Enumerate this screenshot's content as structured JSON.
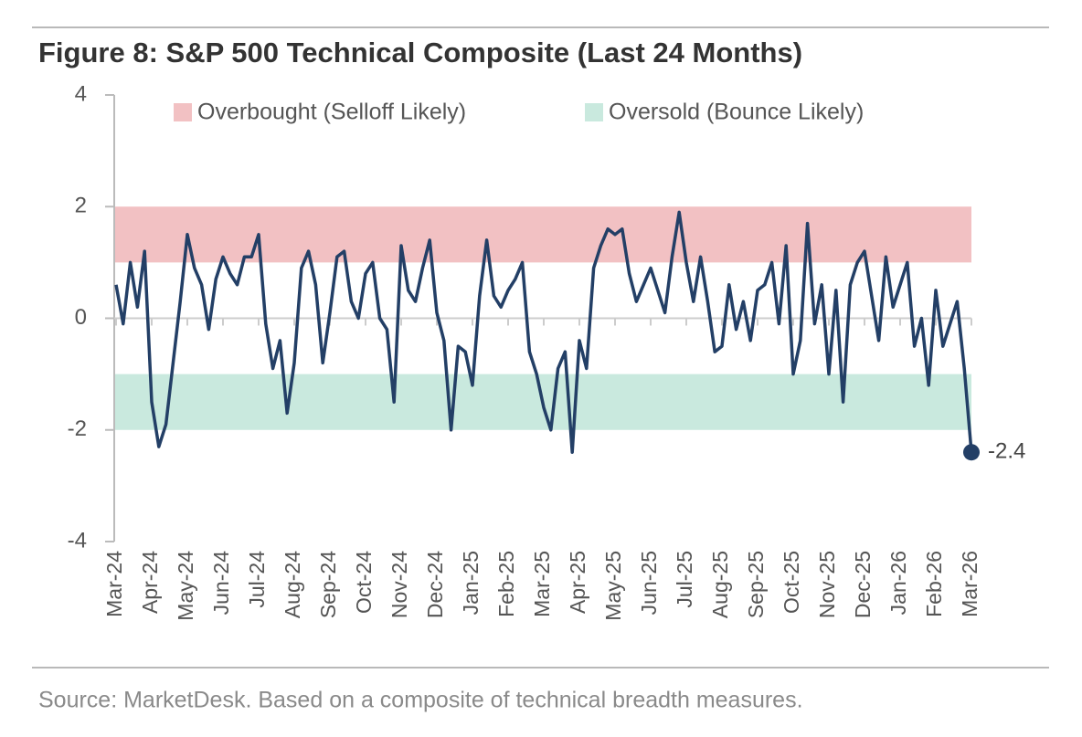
{
  "chart_data": {
    "type": "line",
    "title": "Figure 8: S&P 500 Technical Composite (Last 24 Months)",
    "source": "Source: MarketDesk. Based on a composite of technical breadth measures.",
    "categories": [
      "Mar-24",
      null,
      null,
      null,
      null,
      "Apr-24",
      null,
      null,
      null,
      null,
      "May-24",
      null,
      null,
      null,
      null,
      "Jun-24",
      null,
      null,
      null,
      null,
      "Jul-24",
      null,
      null,
      null,
      null,
      "Aug-24",
      null,
      null,
      null,
      null,
      "Sep-24",
      null,
      null,
      null,
      null,
      "Oct-24",
      null,
      null,
      null,
      null,
      "Nov-24",
      null,
      null,
      null,
      null,
      "Dec-24",
      null,
      null,
      null,
      null,
      "Jan-25",
      null,
      null,
      null,
      null,
      "Feb-25",
      null,
      null,
      null,
      null,
      "Mar-25",
      null,
      null,
      null,
      null,
      "Apr-25",
      null,
      null,
      null,
      null,
      "May-25",
      null,
      null,
      null,
      null,
      "Jun-25",
      null,
      null,
      null,
      null,
      "Jul-25",
      null,
      null,
      null,
      null,
      "Aug-25",
      null,
      null,
      null,
      null,
      "Sep-25",
      null,
      null,
      null,
      null,
      "Oct-25",
      null,
      null,
      null,
      null,
      "Nov-25",
      null,
      null,
      null,
      null,
      "Dec-25",
      null,
      null,
      null,
      null,
      "Jan-26",
      null,
      null,
      null,
      null,
      "Feb-26",
      null,
      null,
      null,
      null,
      "Mar-26"
    ],
    "values": [
      0.6,
      -0.1,
      1.0,
      0.2,
      1.2,
      -1.5,
      -2.3,
      -1.9,
      -0.8,
      0.3,
      1.5,
      0.9,
      0.6,
      -0.2,
      0.7,
      1.1,
      0.8,
      0.6,
      1.1,
      1.1,
      1.5,
      -0.1,
      -0.9,
      -0.4,
      -1.7,
      -0.8,
      0.9,
      1.2,
      0.6,
      -0.8,
      0.1,
      1.1,
      1.2,
      0.3,
      0.0,
      0.8,
      1.0,
      0.0,
      -0.2,
      -1.5,
      1.3,
      0.5,
      0.3,
      0.9,
      1.4,
      0.1,
      -0.4,
      -2.0,
      -0.5,
      -0.6,
      -1.2,
      0.4,
      1.4,
      0.4,
      0.2,
      0.5,
      0.7,
      1.0,
      -0.6,
      -1.0,
      -1.6,
      -2.0,
      -0.9,
      -0.6,
      -2.4,
      -0.4,
      -0.9,
      0.9,
      1.3,
      1.6,
      1.5,
      1.6,
      0.8,
      0.3,
      0.6,
      0.9,
      0.5,
      0.1,
      1.1,
      1.9,
      1.0,
      0.3,
      1.1,
      0.3,
      -0.6,
      -0.5,
      0.6,
      -0.2,
      0.3,
      -0.4,
      0.5,
      0.6,
      1.0,
      -0.1,
      1.3,
      -1.0,
      -0.4,
      1.7,
      -0.1,
      0.6,
      -1.0,
      0.5,
      -1.5,
      0.6,
      1.0,
      1.2,
      0.4,
      -0.4,
      1.1,
      0.2,
      0.6,
      1.0,
      -0.5,
      0.0,
      -1.2,
      0.5,
      -0.5,
      -0.1,
      0.3,
      -0.9,
      -2.4
    ],
    "color": "#233f66",
    "last_value_label": "-2.4",
    "bands": [
      {
        "name": "Overbought (Selloff Likely)",
        "range": [
          1,
          2
        ],
        "color": "#f2c1c3"
      },
      {
        "name": "Oversold (Bounce Likely)",
        "range": [
          -2,
          -1
        ],
        "color": "#c9e9de"
      }
    ],
    "ylim": [
      -4,
      4
    ],
    "yticks": [
      4,
      2,
      0,
      -2,
      -4
    ]
  }
}
